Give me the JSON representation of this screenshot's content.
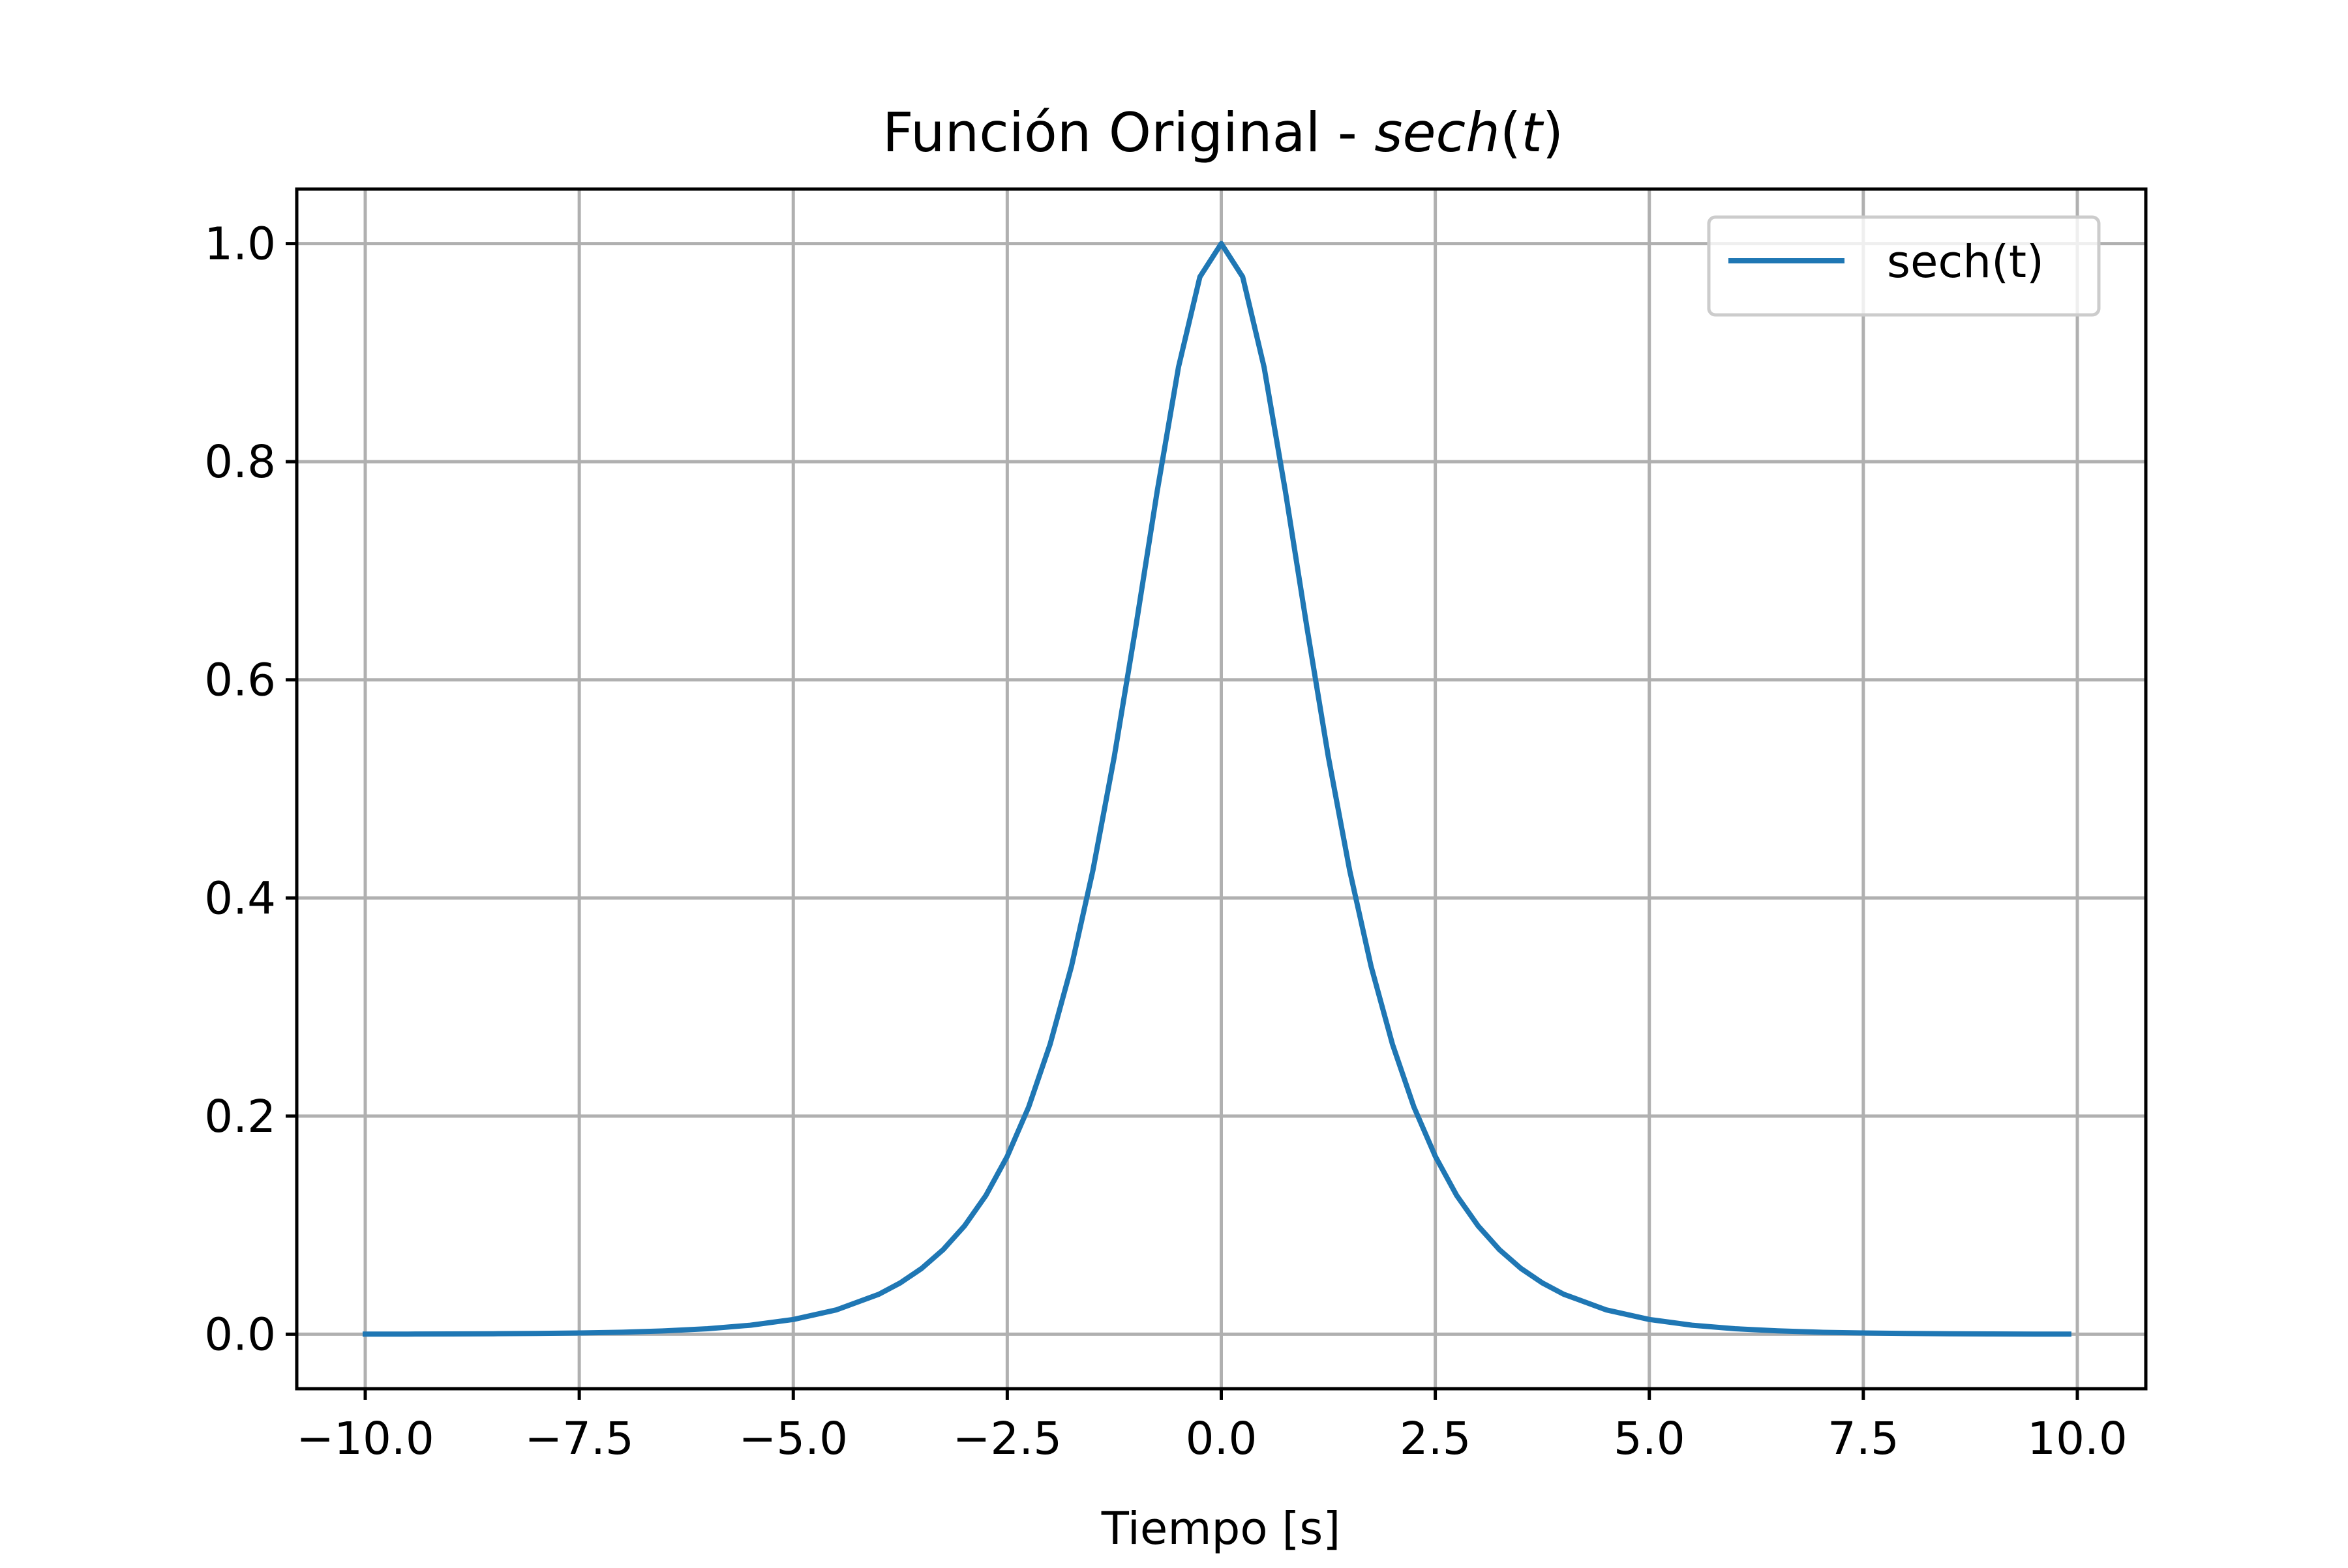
{
  "chart_data": {
    "type": "line",
    "title_prefix": "Función Original - ",
    "title_math": {
      "name": "sech",
      "open": "(",
      "var": "t",
      "close": ")"
    },
    "xlabel": "Tiempo [s]",
    "ylabel": "",
    "xlim": [
      -10.8,
      10.8
    ],
    "ylim": [
      -0.05,
      1.05
    ],
    "xticks": [
      -10.0,
      -7.5,
      -5.0,
      -2.5,
      0.0,
      2.5,
      5.0,
      7.5,
      10.0
    ],
    "xtick_labels": [
      "−10.0",
      "−7.5",
      "−5.0",
      "−2.5",
      "0.0",
      "2.5",
      "5.0",
      "7.5",
      "10.0"
    ],
    "yticks": [
      0.0,
      0.2,
      0.4,
      0.6,
      0.8,
      1.0
    ],
    "ytick_labels": [
      "0.0",
      "0.2",
      "0.4",
      "0.6",
      "0.8",
      "1.0"
    ],
    "grid": true,
    "legend_position": "upper-right",
    "series": [
      {
        "name": "sech(t)",
        "color": "#1f77b4",
        "x": [
          -10.0,
          -9.5,
          -9.0,
          -8.5,
          -8.0,
          -7.5,
          -7.0,
          -6.5,
          -6.0,
          -5.5,
          -5.0,
          -4.5,
          -4.0,
          -3.75,
          -3.5,
          -3.25,
          -3.0,
          -2.75,
          -2.5,
          -2.25,
          -2.0,
          -1.75,
          -1.5,
          -1.25,
          -1.0,
          -0.75,
          -0.5,
          -0.25,
          0.0,
          0.25,
          0.5,
          0.75,
          1.0,
          1.25,
          1.5,
          1.75,
          2.0,
          2.25,
          2.5,
          2.75,
          3.0,
          3.25,
          3.5,
          3.75,
          4.0,
          4.5,
          5.0,
          5.5,
          6.0,
          6.5,
          7.0,
          7.5,
          8.0,
          8.5,
          9.0,
          9.5,
          9.9
        ],
        "y": [
          0.0001,
          0.0001,
          0.0002,
          0.0004,
          0.0007,
          0.0011,
          0.0018,
          0.003,
          0.005,
          0.0082,
          0.0135,
          0.0222,
          0.0366,
          0.047,
          0.0603,
          0.0774,
          0.0993,
          0.1272,
          0.1631,
          0.2084,
          0.2658,
          0.3373,
          0.4251,
          0.5295,
          0.6481,
          0.7724,
          0.8868,
          0.9695,
          1.0,
          0.9695,
          0.8868,
          0.7724,
          0.6481,
          0.5295,
          0.4251,
          0.3373,
          0.2658,
          0.2084,
          0.1631,
          0.1272,
          0.0993,
          0.0774,
          0.0603,
          0.047,
          0.0366,
          0.0222,
          0.0135,
          0.0082,
          0.005,
          0.003,
          0.0018,
          0.0011,
          0.0007,
          0.0004,
          0.0002,
          0.0001,
          0.0001
        ]
      }
    ]
  }
}
